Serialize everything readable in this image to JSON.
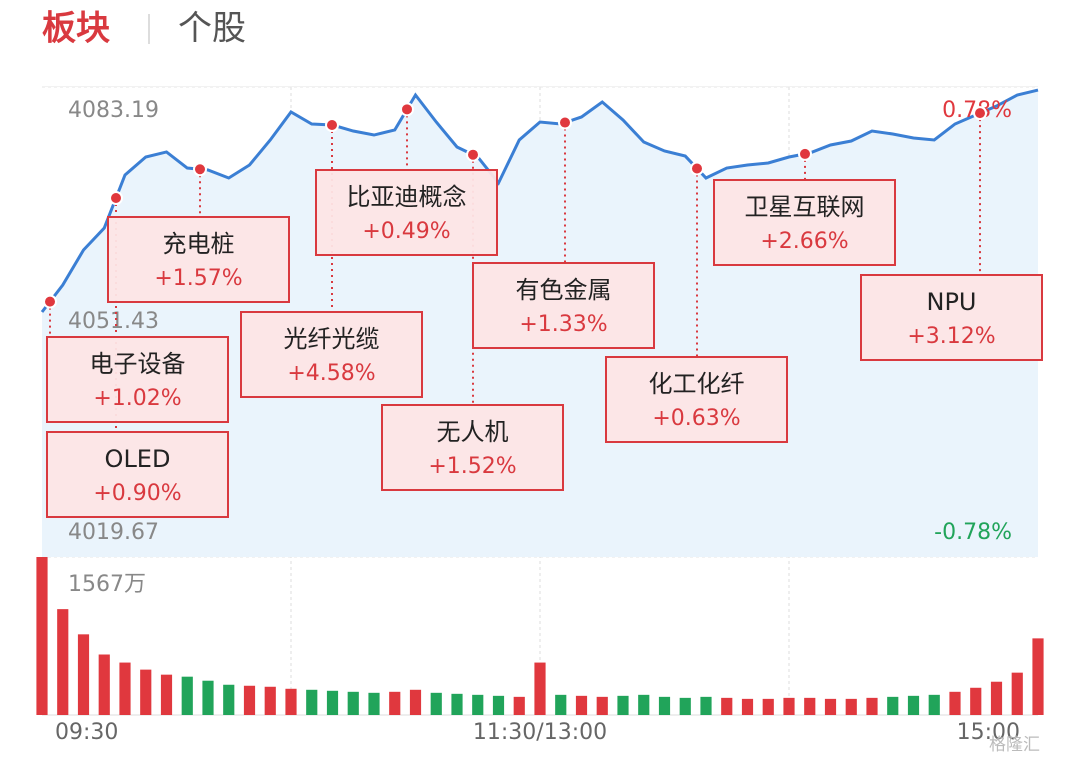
{
  "tabs": [
    "板块",
    "个股"
  ],
  "chart_data": {
    "type": "line",
    "color": "#3b7fd4",
    "values": [
      4052.78,
      4056.43,
      4061.16,
      4064.13,
      4071.3,
      4073.73,
      4074.41,
      4072.24,
      4071.97,
      4070.89,
      4072.65,
      4076.03,
      4079.81,
      4078.19,
      4078.05,
      4077.24,
      4076.7,
      4077.38,
      4082.11,
      4078.46,
      4075.08,
      4073.73,
      4070.22,
      4076.03,
      4078.46,
      4078.19,
      4079.14,
      4081.16,
      4078.73,
      4075.76,
      4074.54,
      4073.86,
      4070.89,
      4072.24,
      4072.65,
      4072.92,
      4073.73,
      4074.27,
      4075.35,
      4075.89,
      4077.24,
      4076.84,
      4076.3,
      4076.03,
      4078.19,
      4079.41,
      4080.62,
      4082.11,
      4082.78
    ],
    "ylim": [
      4019.67,
      4083.19
    ],
    "yticks": [
      4083.19,
      4051.43,
      4019.67
    ],
    "y2lim": [
      -0.78,
      0.78
    ],
    "y2ticks": [
      {
        "value": 0.78,
        "label": "0.78%"
      },
      {
        "value": -0.78,
        "label": "-0.78%"
      }
    ],
    "xticks": [
      "09:30",
      "11:30/13:00",
      "15:00"
    ],
    "annotations": [
      {
        "name": "电子设备",
        "change": "+1.02%"
      },
      {
        "name": "OLED",
        "change": "+0.90%"
      },
      {
        "name": "充电桩",
        "change": "+1.57%"
      },
      {
        "name": "光纤光缆",
        "change": "+4.58%"
      },
      {
        "name": "比亚迪概念",
        "change": "+0.49%"
      },
      {
        "name": "无人机",
        "change": "+1.52%"
      },
      {
        "name": "有色金属",
        "change": "+1.33%"
      },
      {
        "name": "化工化纤",
        "change": "+0.63%"
      },
      {
        "name": "卫星互联网",
        "change": "+2.66%"
      },
      {
        "name": "NPU",
        "change": "+3.12%"
      }
    ],
    "volume": {
      "values": [
        1567,
        1050,
        800,
        600,
        520,
        450,
        400,
        380,
        340,
        300,
        290,
        280,
        260,
        250,
        240,
        230,
        220,
        230,
        250,
        220,
        210,
        200,
        190,
        180,
        520,
        200,
        190,
        180,
        190,
        200,
        180,
        170,
        180,
        170,
        160,
        160,
        170,
        170,
        160,
        160,
        170,
        180,
        190,
        200,
        230,
        270,
        330,
        420,
        760
      ],
      "ylim": [
        0,
        1567
      ],
      "yticks": [
        {
          "value": 1567,
          "label": "1567万"
        }
      ],
      "up_color": "#e0383e",
      "down_color": "#21a45a"
    }
  },
  "watermark": "格隆汇"
}
